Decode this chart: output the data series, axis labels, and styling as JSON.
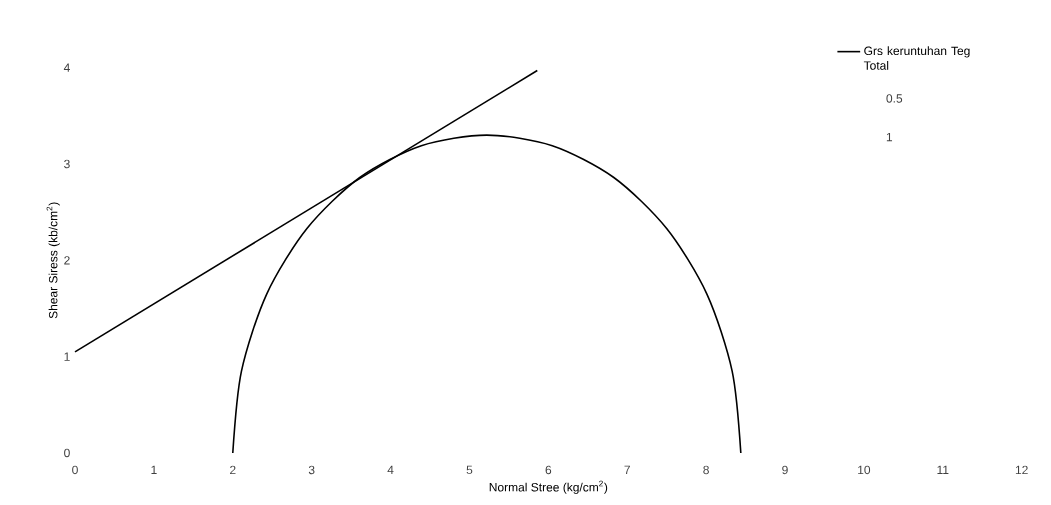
{
  "chart_data": {
    "type": "line",
    "xlabel": "Normal Stree (kg/cm$^{2}$)",
    "ylabel": "Shear Siress (kb/cm$^{2}$)",
    "series": [
      {
        "name": "Grs keruntuhan Teg Total",
        "color": "#000000",
        "x": [
          0,
          5.86
        ],
        "values": [
          1.05,
          3.97
        ]
      },
      {
        "color": "#000000",
        "x": [
          2.0,
          2.11,
          2.43,
          2.94,
          3.61,
          4.39,
          5.22,
          6.05,
          6.83,
          7.5,
          8.01,
          8.33,
          8.44
        ],
        "values": [
          0,
          0.85,
          1.65,
          2.33,
          2.86,
          3.19,
          3.3,
          3.19,
          2.86,
          2.33,
          1.65,
          0.85,
          0
        ]
      }
    ],
    "xlim": [
      0,
      12
    ],
    "ylim": [
      0,
      4
    ],
    "xticks": [
      0,
      1,
      2,
      3,
      4,
      5,
      6,
      7,
      8,
      9,
      10,
      11,
      12
    ],
    "yticks": [
      0,
      1,
      2,
      3,
      4
    ],
    "legend": "top right",
    "annotations": [
      "0.5",
      "1"
    ]
  }
}
